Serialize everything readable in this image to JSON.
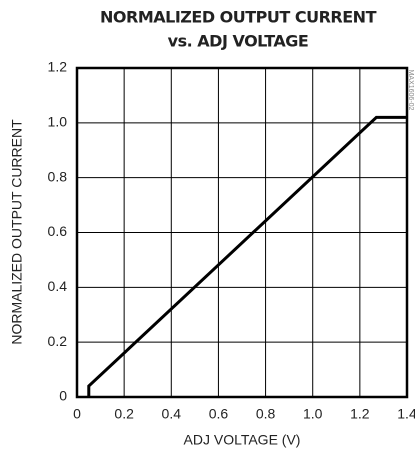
{
  "chart_data": {
    "type": "line",
    "title": [
      "NORMALIZED OUTPUT CURRENT",
      "vs. ADJ VOLTAGE"
    ],
    "xlabel": "ADJ VOLTAGE (V)",
    "ylabel": "NORMALIZED OUTPUT CURRENT",
    "annotation": "MAX1606-02",
    "x": [
      0.05,
      0.05,
      1.27,
      1.4
    ],
    "series": [
      {
        "name": null,
        "color": "#000000",
        "values": [
          0,
          0.04,
          1.02,
          1.02
        ]
      }
    ],
    "xlim": [
      0,
      1.4
    ],
    "xticks": [
      0,
      0.2,
      0.4,
      0.6,
      0.8,
      {
        "value": 1,
        "label": "1.0"
      },
      1.2,
      1.4
    ],
    "ylim": [
      0,
      1.2
    ],
    "yticks": [
      0,
      0.2,
      0.4,
      0.6,
      0.8,
      {
        "value": 1,
        "label": "1.0"
      },
      1.2
    ],
    "grid": true
  }
}
